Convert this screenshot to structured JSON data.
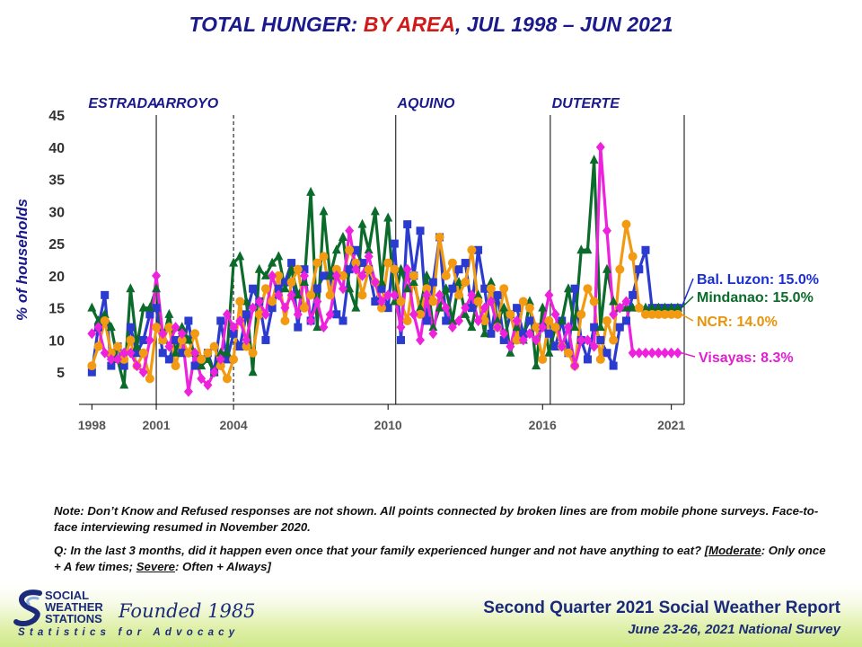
{
  "title": {
    "part1": "TOTAL HUNGER:",
    "part2": "BY AREA",
    "part3": ", JUL 1998 – JUN 2021"
  },
  "colors": {
    "title_blue": "#1a1a8c",
    "title_red": "#d11a1a",
    "bal_luzon": "#2b3bd0",
    "mindanao": "#0b6b2a",
    "ncr": "#f29a12",
    "visayas": "#ee22dd",
    "label_luzon": "#1b2fd0",
    "label_mindanao": "#0b6b2a",
    "label_ncr": "#e8940a",
    "label_visayas": "#e020d0"
  },
  "chart_data": {
    "type": "line",
    "ylabel": "% of households",
    "ylim": [
      0,
      45
    ],
    "yticks": [
      5,
      10,
      15,
      20,
      25,
      30,
      35,
      40,
      45
    ],
    "xlim": [
      1998,
      2021.5
    ],
    "xtick_labels": [
      "1998",
      "2001",
      "2004",
      "2010",
      "2016",
      "2021"
    ],
    "xticks": [
      1998.5,
      2001,
      2004,
      2010,
      2016,
      2021
    ],
    "presidents": [
      {
        "label": "ESTRADA",
        "start": 1998.5
      },
      {
        "label": "ARROYO",
        "start": 2001.1
      },
      {
        "label": "AQUINO",
        "start": 2010.5
      },
      {
        "label": "DUTERTE",
        "start": 2016.5
      }
    ],
    "term_dividers": [
      {
        "x": 2001.0,
        "style": "solid"
      },
      {
        "x": 2004.0,
        "style": "dashed"
      },
      {
        "x": 2010.3,
        "style": "solid"
      },
      {
        "x": 2016.3,
        "style": "solid"
      },
      {
        "x": 2021.5,
        "style": "solid"
      }
    ],
    "series": [
      {
        "name": "Bal. Luzon",
        "end_label": "Bal. Luzon: 15.0%",
        "marker": "square",
        "x": [
          1998.5,
          1998.75,
          1999,
          1999.25,
          1999.5,
          1999.75,
          2000,
          2000.25,
          2000.5,
          2000.75,
          2001,
          2001.25,
          2001.5,
          2001.75,
          2002,
          2002.25,
          2002.5,
          2002.75,
          2003,
          2003.25,
          2003.5,
          2003.75,
          2004,
          2004.25,
          2004.5,
          2004.75,
          2005,
          2005.25,
          2005.5,
          2005.75,
          2006,
          2006.25,
          2006.5,
          2006.75,
          2007,
          2007.25,
          2007.5,
          2007.75,
          2008,
          2008.25,
          2008.5,
          2008.75,
          2009,
          2009.25,
          2009.5,
          2009.75,
          2010,
          2010.25,
          2010.5,
          2010.75,
          2011,
          2011.25,
          2011.5,
          2011.75,
          2012,
          2012.25,
          2012.5,
          2012.75,
          2013,
          2013.25,
          2013.5,
          2013.75,
          2014,
          2014.25,
          2014.5,
          2014.75,
          2015,
          2015.25,
          2015.5,
          2015.75,
          2016,
          2016.25,
          2016.5,
          2016.75,
          2017,
          2017.25,
          2017.5,
          2017.75,
          2018,
          2018.25,
          2018.5,
          2018.75,
          2019,
          2019.25,
          2019.5,
          2019.75,
          2020.0,
          2020.25,
          2020.5,
          2020.75,
          2021,
          2021.25
        ],
        "values": [
          5,
          12,
          17,
          6,
          9,
          6,
          12,
          8,
          10,
          14,
          15,
          8,
          7,
          10,
          8,
          13,
          6,
          7,
          8,
          5,
          13,
          7,
          11,
          9,
          14,
          18,
          16,
          10,
          15,
          18,
          19,
          22,
          12,
          21,
          13,
          18,
          20,
          20,
          14,
          13,
          21,
          24,
          22,
          21,
          16,
          18,
          15,
          25,
          10,
          28,
          20,
          27,
          13,
          19,
          26,
          13,
          18,
          21,
          22,
          15,
          24,
          18,
          11,
          17,
          10,
          14,
          15,
          11,
          13,
          12,
          12,
          11,
          9,
          13,
          8,
          18,
          10,
          7,
          12,
          10,
          8,
          6,
          12,
          13,
          17,
          21,
          24,
          15,
          15,
          15,
          15,
          15
        ]
      },
      {
        "name": "Mindanao",
        "end_label": "Mindanao: 15.0%",
        "marker": "triangle",
        "x": [
          1998.5,
          1998.75,
          1999,
          1999.25,
          1999.5,
          1999.75,
          2000,
          2000.25,
          2000.5,
          2000.75,
          2001,
          2001.25,
          2001.5,
          2001.75,
          2002,
          2002.25,
          2002.5,
          2002.75,
          2003,
          2003.25,
          2003.5,
          2003.75,
          2004,
          2004.25,
          2004.5,
          2004.75,
          2005,
          2005.25,
          2005.5,
          2005.75,
          2006,
          2006.25,
          2006.5,
          2006.75,
          2007,
          2007.25,
          2007.5,
          2007.75,
          2008,
          2008.25,
          2008.5,
          2008.75,
          2009,
          2009.25,
          2009.5,
          2009.75,
          2010,
          2010.25,
          2010.5,
          2010.75,
          2011,
          2011.25,
          2011.5,
          2011.75,
          2012,
          2012.25,
          2012.5,
          2012.75,
          2013,
          2013.25,
          2013.5,
          2013.75,
          2014,
          2014.25,
          2014.5,
          2014.75,
          2015,
          2015.25,
          2015.5,
          2015.75,
          2016,
          2016.25,
          2016.5,
          2016.75,
          2017,
          2017.25,
          2017.5,
          2017.75,
          2018,
          2018.25,
          2018.5,
          2018.75,
          2019,
          2019.25,
          2019.5,
          2019.75,
          2020.0,
          2020.25,
          2020.5,
          2020.75,
          2021,
          2021.25
        ],
        "values": [
          15,
          13,
          14,
          12,
          7,
          3,
          18,
          9,
          15,
          15,
          18,
          10,
          14,
          8,
          12,
          10,
          8,
          6,
          7,
          5,
          8,
          8,
          22,
          23,
          16,
          5,
          21,
          20,
          22,
          23,
          18,
          21,
          17,
          19,
          33,
          12,
          30,
          20,
          24,
          26,
          18,
          15,
          28,
          24,
          30,
          19,
          29,
          16,
          21,
          18,
          19,
          15,
          20,
          12,
          15,
          18,
          13,
          19,
          14,
          12,
          17,
          11,
          19,
          13,
          15,
          8,
          12,
          10,
          16,
          6,
          15,
          8,
          12,
          13,
          18,
          12,
          24,
          24,
          38,
          12,
          21,
          16,
          15,
          15,
          15,
          15,
          15,
          15,
          15,
          15,
          15,
          15
        ]
      },
      {
        "name": "NCR",
        "end_label": "NCR: 14.0%",
        "marker": "circle",
        "x": [
          1998.5,
          1998.75,
          1999,
          1999.25,
          1999.5,
          1999.75,
          2000,
          2000.25,
          2000.5,
          2000.75,
          2001,
          2001.25,
          2001.5,
          2001.75,
          2002,
          2002.25,
          2002.5,
          2002.75,
          2003,
          2003.25,
          2003.5,
          2003.75,
          2004,
          2004.25,
          2004.5,
          2004.75,
          2005,
          2005.25,
          2005.5,
          2005.75,
          2006,
          2006.25,
          2006.5,
          2006.75,
          2007,
          2007.25,
          2007.5,
          2007.75,
          2008,
          2008.25,
          2008.5,
          2008.75,
          2009,
          2009.25,
          2009.5,
          2009.75,
          2010,
          2010.25,
          2010.5,
          2010.75,
          2011,
          2011.25,
          2011.5,
          2011.75,
          2012,
          2012.25,
          2012.5,
          2012.75,
          2013,
          2013.25,
          2013.5,
          2013.75,
          2014,
          2014.25,
          2014.5,
          2014.75,
          2015,
          2015.25,
          2015.5,
          2015.75,
          2016,
          2016.25,
          2016.5,
          2016.75,
          2017,
          2017.25,
          2017.5,
          2017.75,
          2018,
          2018.25,
          2018.5,
          2018.75,
          2019,
          2019.25,
          2019.5,
          2019.75,
          2020.0,
          2020.25,
          2020.5,
          2020.75,
          2021,
          2021.25
        ],
        "values": [
          6,
          9,
          13,
          8,
          9,
          7,
          10,
          6,
          8,
          4,
          12,
          10,
          12,
          6,
          10,
          8,
          11,
          7,
          8,
          9,
          6,
          4,
          7,
          16,
          9,
          8,
          14,
          18,
          16,
          20,
          13,
          19,
          21,
          15,
          17,
          22,
          23,
          17,
          21,
          20,
          24,
          22,
          17,
          21,
          19,
          15,
          22,
          21,
          16,
          13,
          20,
          14,
          18,
          16,
          26,
          20,
          22,
          17,
          19,
          24,
          16,
          13,
          18,
          12,
          18,
          14,
          10,
          16,
          15,
          12,
          7,
          13,
          12,
          9,
          8,
          6,
          14,
          18,
          16,
          7,
          13,
          10,
          21,
          28,
          23,
          15,
          14,
          14,
          14,
          14,
          14,
          14
        ]
      },
      {
        "name": "Visayas",
        "end_label": "Visayas: 8.3%",
        "marker": "diamond",
        "x": [
          1998.5,
          1998.75,
          1999,
          1999.25,
          1999.5,
          1999.75,
          2000,
          2000.25,
          2000.5,
          2000.75,
          2001,
          2001.25,
          2001.5,
          2001.75,
          2002,
          2002.25,
          2002.5,
          2002.75,
          2003,
          2003.25,
          2003.5,
          2003.75,
          2004,
          2004.25,
          2004.5,
          2004.75,
          2005,
          2005.25,
          2005.5,
          2005.75,
          2006,
          2006.25,
          2006.5,
          2006.75,
          2007,
          2007.25,
          2007.5,
          2007.75,
          2008,
          2008.25,
          2008.5,
          2008.75,
          2009,
          2009.25,
          2009.5,
          2009.75,
          2010,
          2010.25,
          2010.5,
          2010.75,
          2011,
          2011.25,
          2011.5,
          2011.75,
          2012,
          2012.25,
          2012.5,
          2012.75,
          2013,
          2013.25,
          2013.5,
          2013.75,
          2014,
          2014.25,
          2014.5,
          2014.75,
          2015,
          2015.25,
          2015.5,
          2015.75,
          2016,
          2016.25,
          2016.5,
          2016.75,
          2017,
          2017.25,
          2017.5,
          2017.75,
          2018,
          2018.25,
          2018.5,
          2018.75,
          2019,
          2019.25,
          2019.5,
          2019.75,
          2020.0,
          2020.25,
          2020.5,
          2020.75,
          2021,
          2021.25
        ],
        "values": [
          11,
          12,
          8,
          7,
          7,
          8,
          8,
          6,
          5,
          10,
          20,
          11,
          9,
          12,
          11,
          2,
          8,
          4,
          3,
          5,
          7,
          14,
          12,
          13,
          10,
          15,
          16,
          14,
          20,
          17,
          15,
          17,
          14,
          20,
          13,
          16,
          12,
          14,
          20,
          18,
          27,
          21,
          20,
          23,
          19,
          16,
          17,
          17,
          12,
          21,
          14,
          10,
          17,
          11,
          17,
          15,
          12,
          13,
          15,
          17,
          13,
          15,
          16,
          12,
          11,
          9,
          13,
          10,
          11,
          10,
          12,
          17,
          14,
          9,
          12,
          6,
          10,
          10,
          9,
          40,
          27,
          14,
          15,
          16,
          8,
          8,
          8,
          8,
          8,
          8,
          8,
          8
        ]
      }
    ]
  },
  "note": {
    "text1": "Note: Don’t Know and Refused responses are not shown. All points connected by broken lines are from mobile phone surveys. Face-to-face interviewing resumed in November 2020.",
    "q_prefix": "Q: In the last 3 months, did it happen even once that your family experienced hunger and not have anything to eat? [",
    "moderate": "Moderate",
    "moderate_desc": ": Only once + A few times; ",
    "severe": "Severe",
    "severe_desc": ": Often + Always]"
  },
  "footer": {
    "org_line1": "SOCIAL",
    "org_line2": "WEATHER",
    "org_line3": "STATIONS",
    "founded": "Founded 1985",
    "tagline": "Statistics for Advocacy",
    "report_title": "Second Quarter 2021 Social Weather Report",
    "report_subtitle": "June 23-26, 2021 National Survey"
  }
}
